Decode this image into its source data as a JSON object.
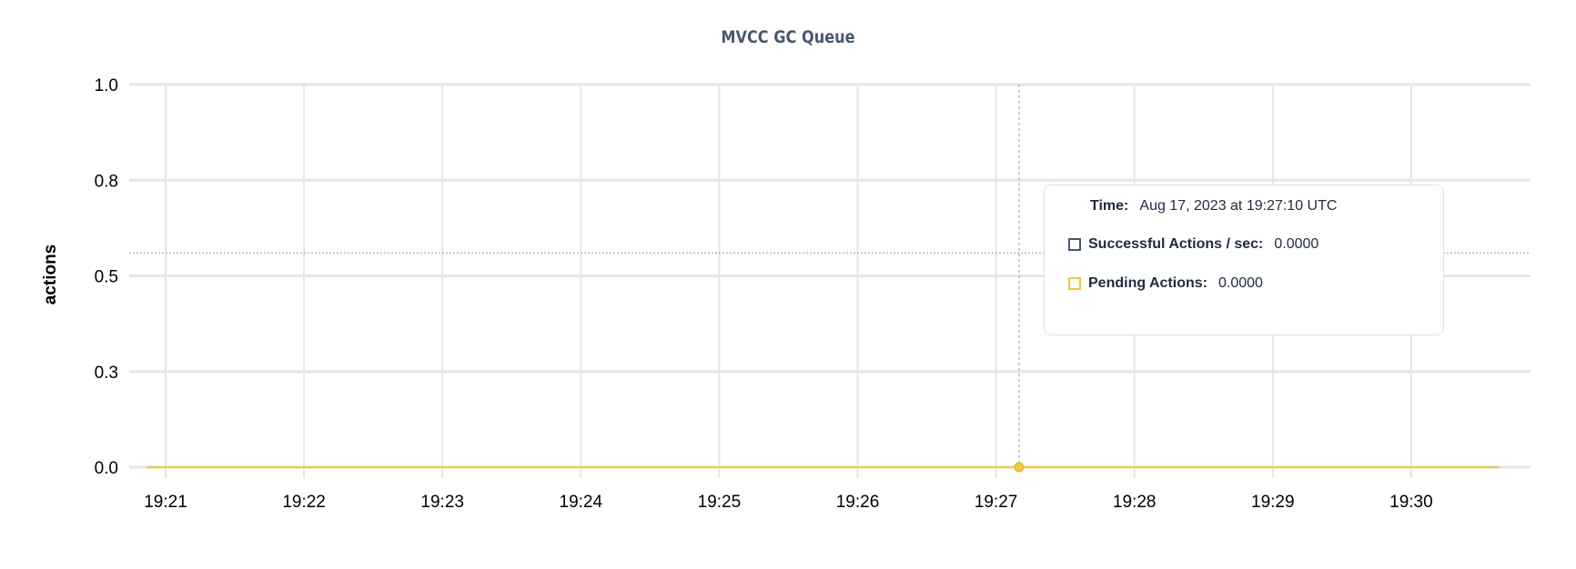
{
  "chart_data": {
    "type": "line",
    "title": "MVCC GC Queue",
    "ylabel": "actions",
    "xlabel": "",
    "ylim": [
      0,
      1
    ],
    "y_ticks": [
      {
        "value": 1.0,
        "label": "1.0"
      },
      {
        "value": 0.75,
        "label": "0.8"
      },
      {
        "value": 0.5,
        "label": "0.5"
      },
      {
        "value": 0.25,
        "label": "0.3"
      },
      {
        "value": 0.0,
        "label": "0.0"
      }
    ],
    "x_ticks": [
      "19:21",
      "19:22",
      "19:23",
      "19:24",
      "19:25",
      "19:26",
      "19:27",
      "19:28",
      "19:29",
      "19:30"
    ],
    "xlim": [
      "19:20:45",
      "19:31:45"
    ],
    "grid": true,
    "series": [
      {
        "name": "Successful Actions / sec",
        "color": "#475872",
        "x": [
          "19:20:52",
          "19:30:38"
        ],
        "y": [
          0,
          0
        ]
      },
      {
        "name": "Pending Actions",
        "color": "#f4c63d",
        "x": [
          "19:20:52",
          "19:30:38"
        ],
        "y": [
          0,
          0
        ]
      }
    ],
    "hover": {
      "x": "19:27:10",
      "y": 0.56
    }
  },
  "tooltip": {
    "time_label": "Time:",
    "time_value": "Aug 17, 2023 at 19:27:10 UTC",
    "rows": [
      {
        "label": "Successful Actions / sec:",
        "value": "0.0000",
        "color": "#475872"
      },
      {
        "label": "Pending Actions:",
        "value": "0.0000",
        "color": "#f4c63d"
      }
    ]
  }
}
